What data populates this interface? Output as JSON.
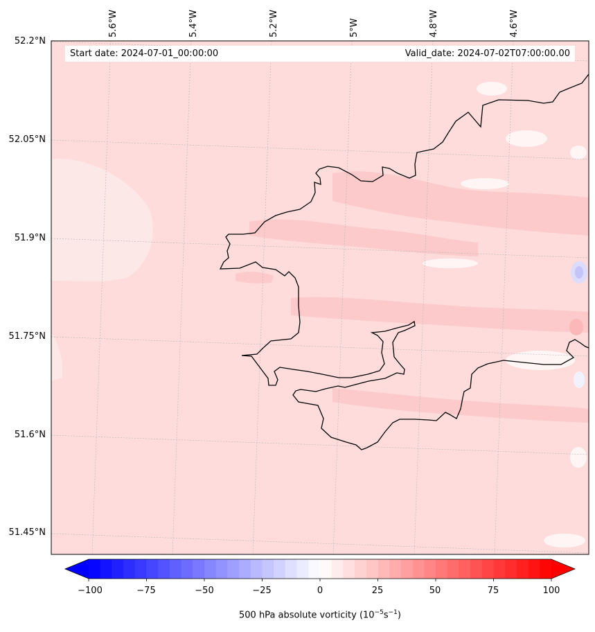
{
  "header": {
    "start_date": "Start date: 2024-07-01_00:00:00",
    "valid_date": "Valid_date: 2024-07-02T07:00:00.00"
  },
  "axes": {
    "lat_labels": [
      "52.2°N",
      "52.05°N",
      "51.9°N",
      "51.75°N",
      "51.6°N",
      "51.45°N"
    ],
    "lon_labels": [
      "5.6°W",
      "5.4°W",
      "5.2°W",
      "5°W",
      "4.8°W",
      "4.6°W"
    ]
  },
  "colorbar": {
    "label": "500 hPa absolute vorticity (10",
    "label_exp1": "−5",
    "label_mid": "s",
    "label_exp2": "−1",
    "label_end": ")",
    "ticks": [
      "−100",
      "−75",
      "−50",
      "−25",
      "0",
      "25",
      "50",
      "75",
      "100"
    ],
    "min": -100,
    "max": 100,
    "extend": "both",
    "color_low": "#0000ff",
    "color_mid": "#ffffff",
    "color_high": "#ff0000"
  },
  "map": {
    "background_color": "#fedcdc",
    "coastline_color": "#000000",
    "grid": true
  }
}
